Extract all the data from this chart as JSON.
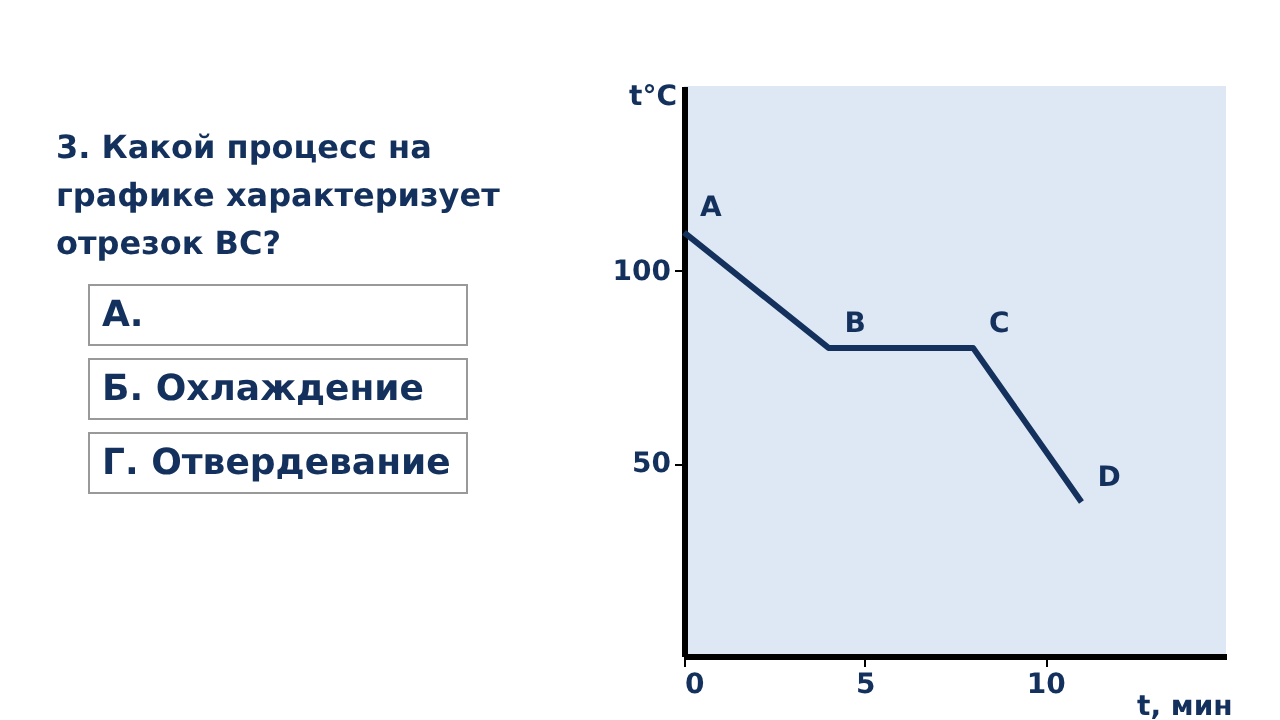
{
  "chart_data": {
    "type": "line",
    "title": "3. Какой процесс на графике характеризует отрезок ВС?",
    "xlabel": "t, мин",
    "ylabel": "t°C",
    "x": [
      0,
      4,
      8,
      11
    ],
    "series": [
      {
        "color": "#13315c",
        "values": [
          110,
          80,
          80,
          40
        ]
      }
    ],
    "xlim": [
      0,
      15
    ],
    "ylim": [
      0,
      148
    ],
    "xticks": [
      0,
      5,
      10
    ],
    "yticks": [
      50,
      100
    ],
    "grid": false,
    "legend": false,
    "marker": "none",
    "line_style": "solid",
    "annotations": [
      {
        "text": "A",
        "x": 0,
        "y": 110
      },
      {
        "text": "B",
        "x": 4,
        "y": 80
      },
      {
        "text": "C",
        "x": 8,
        "y": 80
      },
      {
        "text": "D",
        "x": 11,
        "y": 40
      },
      "А.",
      "Б. Охлаждение",
      "Г. Отвердевание"
    ]
  }
}
